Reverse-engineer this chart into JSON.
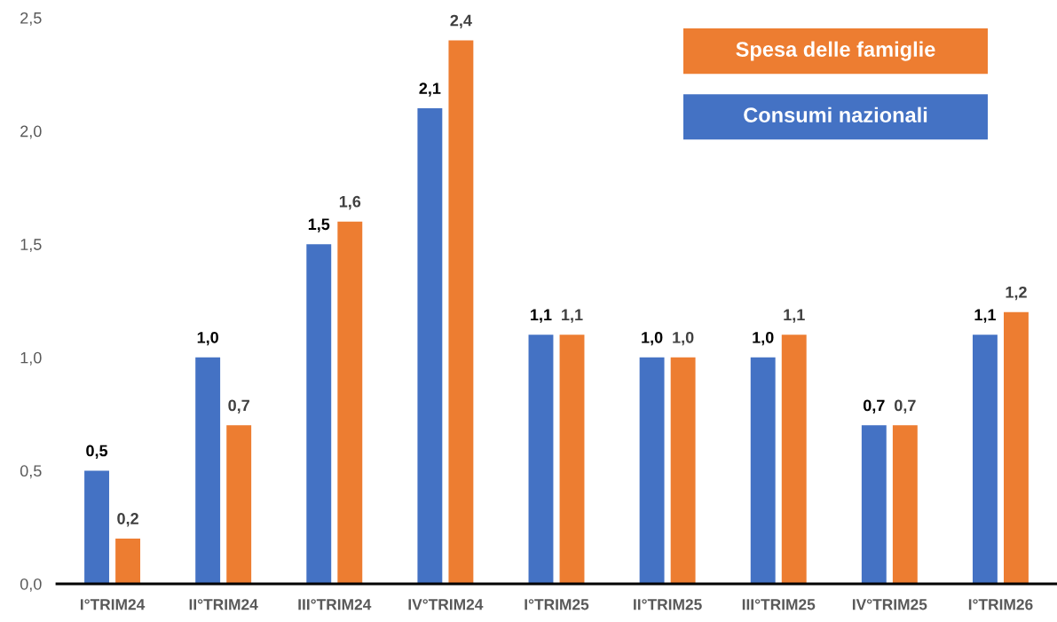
{
  "chart_data": {
    "type": "bar",
    "categories": [
      "I°TRIM24",
      "II°TRIM24",
      "III°TRIM24",
      "IV°TRIM24",
      "I°TRIM25",
      "II°TRIM25",
      "III°TRIM25",
      "IV°TRIM25",
      "I°TRIM26"
    ],
    "series": [
      {
        "name": "Consumi nazionali",
        "color": "#4472c4",
        "values": [
          0.5,
          1.0,
          1.5,
          2.1,
          1.1,
          1.0,
          1.0,
          0.7,
          1.1
        ],
        "value_labels": [
          "0,5",
          "1,0",
          "1,5",
          "2,1",
          "1,1",
          "1,0",
          "1,0",
          "0,7",
          "1,1"
        ]
      },
      {
        "name": "Spesa delle famiglie",
        "color": "#ed7d31",
        "values": [
          0.2,
          0.7,
          1.6,
          2.4,
          1.1,
          1.0,
          1.1,
          0.7,
          1.2
        ],
        "value_labels": [
          "0,2",
          "0,7",
          "1,6",
          "2,4",
          "1,1",
          "1,0",
          "1,1",
          "0,7",
          "1,2"
        ]
      }
    ],
    "ylim": [
      0,
      2.5
    ],
    "yticks": [
      {
        "value": 0,
        "label": "0,0"
      },
      {
        "value": 0.5,
        "label": "0,5"
      },
      {
        "value": 1.0,
        "label": "1,0"
      },
      {
        "value": 1.5,
        "label": "1,5"
      },
      {
        "value": 2.0,
        "label": "2,0"
      },
      {
        "value": 2.5,
        "label": "2,5"
      }
    ],
    "grid": false,
    "legend": "top right"
  }
}
